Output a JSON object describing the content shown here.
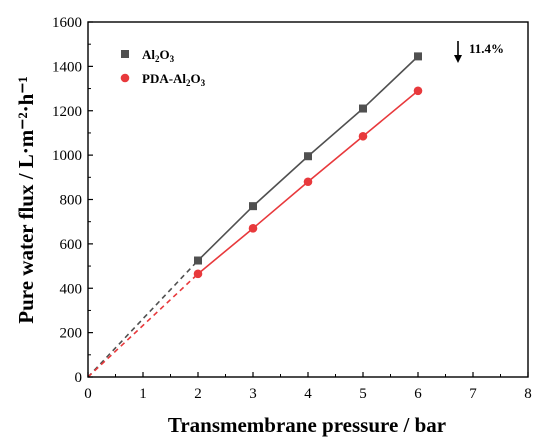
{
  "chart_data": {
    "type": "line",
    "xlabel": "Transmembrane pressure / bar",
    "ylabel": "Pure water flux / L·m⁻²·h⁻¹",
    "xlim": [
      0,
      8
    ],
    "ylim": [
      0,
      1600
    ],
    "x_ticks": [
      "0",
      "1",
      "2",
      "3",
      "4",
      "5",
      "6",
      "7",
      "8"
    ],
    "y_ticks": [
      "0",
      "200",
      "400",
      "600",
      "800",
      "1000",
      "1200",
      "1400",
      "1600"
    ],
    "grid": false,
    "legend_position": "top-left",
    "x": [
      2,
      3,
      4,
      5,
      6
    ],
    "series": [
      {
        "name": "Al2O3",
        "name_main": "Al",
        "name_sub1": "2",
        "name_mid": "O",
        "name_sub2": "3",
        "marker": "square",
        "color": "#505050",
        "values": [
          525,
          770,
          995,
          1210,
          1445
        ],
        "extrapolated_from": [
          0,
          0
        ]
      },
      {
        "name": "PDA-Al2O3",
        "name_main": "PDA-Al",
        "name_sub1": "2",
        "name_mid": "O",
        "name_sub2": "3",
        "marker": "circle",
        "color": "#e8393c",
        "values": [
          465,
          670,
          880,
          1085,
          1290
        ],
        "extrapolated_from": [
          0,
          0
        ]
      }
    ],
    "annotation": {
      "text": "11.4%",
      "icon": "down-arrow-icon"
    }
  }
}
